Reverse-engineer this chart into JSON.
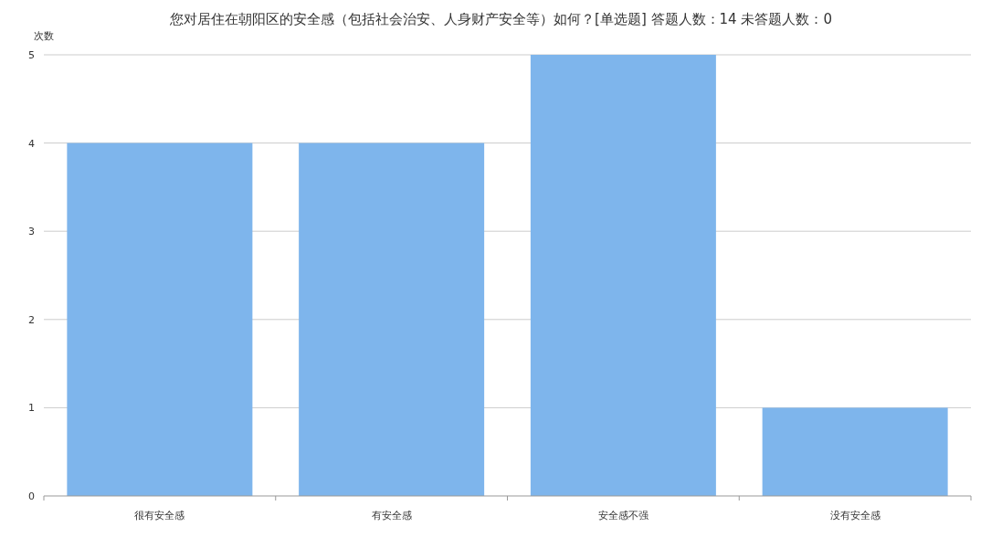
{
  "chart_data": {
    "type": "bar",
    "title": "您对居住在朝阳区的安全感（包括社会治安、人身财产安全等）如何？[单选题]  答题人数：14  未答题人数：0",
    "ylabel": "次数",
    "categories": [
      "很有安全感",
      "有安全感",
      "安全感不强",
      "没有安全感"
    ],
    "values": [
      4,
      4,
      5,
      1
    ],
    "color": "#7eb5ec",
    "ylim": [
      0,
      5
    ],
    "yticks": [
      0,
      1,
      2,
      3,
      4,
      5
    ],
    "grid": "y"
  }
}
